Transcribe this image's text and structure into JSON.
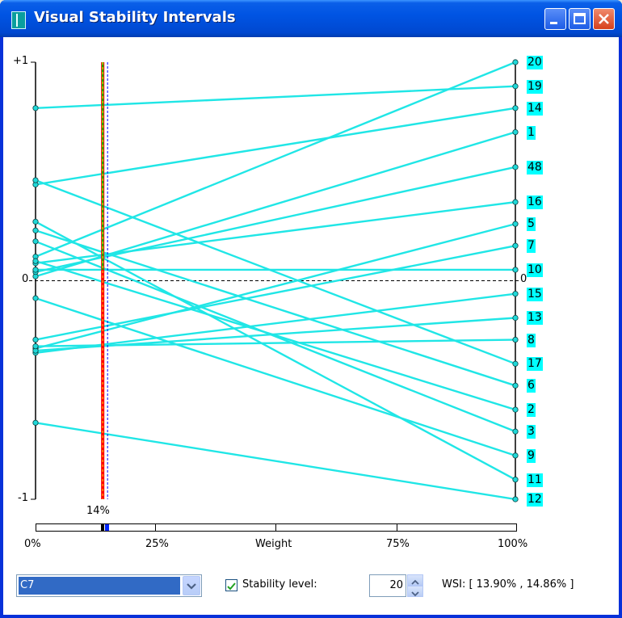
{
  "window": {
    "title": "Visual Stability Intervals"
  },
  "plot": {
    "y_max_label": "+1",
    "y_zero_label": "0",
    "y_min_label": "-1",
    "right_zero_label": "0",
    "weight_marker_label": "14%",
    "weight_axis_ticks": [
      "0%",
      "25%",
      "Weight",
      "75%",
      "100%"
    ],
    "right_labels": [
      "20",
      "19",
      "14",
      "1",
      "48",
      "16",
      "5",
      "7",
      "10",
      "15",
      "13",
      "8",
      "17",
      "6",
      "2",
      "3",
      "9",
      "11",
      "12"
    ],
    "current_weight": 0.14
  },
  "chart_data": {
    "type": "line",
    "title": "Visual Stability Intervals",
    "xlabel": "Weight",
    "ylim": [
      -1,
      1
    ],
    "xlim": [
      "0%",
      "100%"
    ],
    "marker_weight_percent": 14,
    "stability_interval_percent": [
      13.9,
      14.86
    ],
    "series": [
      {
        "name": "20",
        "values": [
          0.11,
          1.0
        ]
      },
      {
        "name": "19",
        "values": [
          0.79,
          0.89
        ]
      },
      {
        "name": "14",
        "values": [
          0.44,
          0.79
        ]
      },
      {
        "name": "1",
        "values": [
          0.02,
          0.68
        ]
      },
      {
        "name": "48",
        "values": [
          0.04,
          0.52
        ]
      },
      {
        "name": "16",
        "values": [
          0.08,
          0.36
        ]
      },
      {
        "name": "5",
        "values": [
          -0.31,
          0.26
        ]
      },
      {
        "name": "7",
        "values": [
          -0.27,
          0.16
        ]
      },
      {
        "name": "10",
        "values": [
          0.05,
          0.05
        ]
      },
      {
        "name": "15",
        "values": [
          -0.33,
          -0.06
        ]
      },
      {
        "name": "13",
        "values": [
          -0.32,
          -0.17
        ]
      },
      {
        "name": "8",
        "values": [
          -0.3,
          -0.27
        ]
      },
      {
        "name": "17",
        "values": [
          0.46,
          -0.38
        ]
      },
      {
        "name": "6",
        "values": [
          0.23,
          -0.48
        ]
      },
      {
        "name": "2",
        "values": [
          0.09,
          -0.59
        ]
      },
      {
        "name": "3",
        "values": [
          0.18,
          -0.69
        ]
      },
      {
        "name": "9",
        "values": [
          -0.08,
          -0.8
        ]
      },
      {
        "name": "11",
        "values": [
          0.27,
          -0.91
        ]
      },
      {
        "name": "12",
        "values": [
          -0.65,
          -1.0
        ]
      }
    ]
  },
  "controls": {
    "alternative_selected": "C7",
    "stability_checked": true,
    "stability_label": "Stability level:",
    "stability_value": "20",
    "wsi_text": "WSI: [ 13.90% , 14.86% ]"
  },
  "colors": {
    "line": "#20e6e6",
    "marker_red": "#ff0000",
    "marker_green": "#00c000",
    "titlebar": "#0054e3"
  }
}
